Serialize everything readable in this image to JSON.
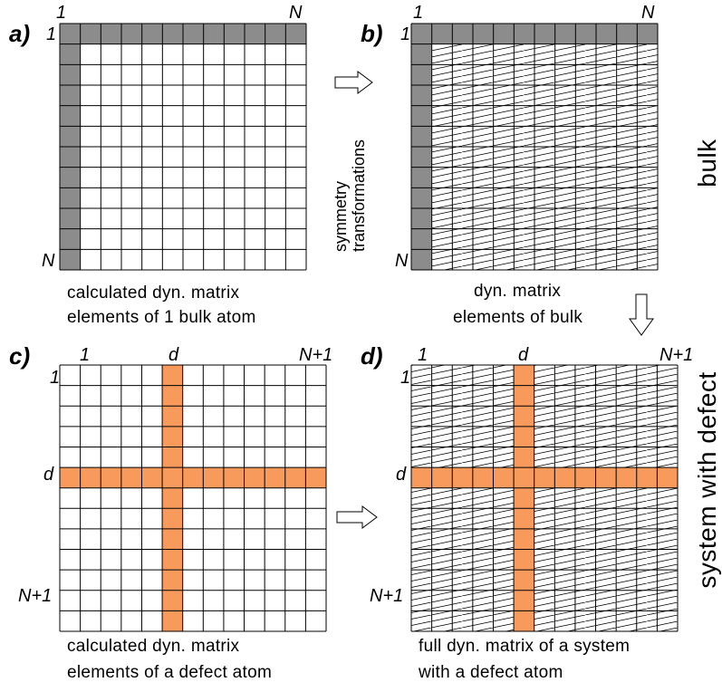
{
  "colors": {
    "gray_highlight": "#8c8c8c",
    "orange_highlight": "#f79a5c",
    "grid_line": "#000000",
    "hatch_line": "#000000"
  },
  "panels": {
    "a": {
      "letter": "a)",
      "top_left_index": "1",
      "top_right_index": "N",
      "left_top_index": "1",
      "left_bottom_index": "N",
      "grid_size": 12,
      "highlight": "first row and first column (gray)",
      "hatched": false,
      "caption_line1": "calculated dyn. matrix",
      "caption_line2": "elements of 1 bulk atom"
    },
    "b": {
      "letter": "b)",
      "top_left_index": "1",
      "top_right_index": "N",
      "left_top_index": "1",
      "left_bottom_index": "N",
      "grid_size": 12,
      "highlight": "first row and first column (gray)",
      "hatched": true,
      "caption_line1": "dyn. matrix",
      "caption_line2": "elements of bulk"
    },
    "c": {
      "letter": "c)",
      "top_left_index": "1",
      "top_mid_index": "d",
      "top_right_index": "N+1",
      "left_top_index": "1",
      "left_mid_index": "d",
      "left_bottom_index": "N+1",
      "grid_size": 13,
      "highlight": "row d and column d (orange)",
      "hatched": false,
      "caption_line1": "calculated dyn. matrix",
      "caption_line2": "elements of a defect atom"
    },
    "d": {
      "letter": "d)",
      "top_left_index": "1",
      "top_mid_index": "d",
      "top_right_index": "N+1",
      "left_top_index": "1",
      "left_mid_index": "d",
      "left_bottom_index": "N+1",
      "grid_size": 13,
      "highlight": "row d and column d (orange)",
      "hatched": true,
      "caption_line1": "full dyn. matrix of a system",
      "caption_line2": "with a defect atom"
    }
  },
  "arrows": {
    "a_to_b_label_line1": "symmetry",
    "a_to_b_label_line2": "transformations"
  },
  "side_labels": {
    "top": "bulk",
    "bottom": "system with defect"
  }
}
